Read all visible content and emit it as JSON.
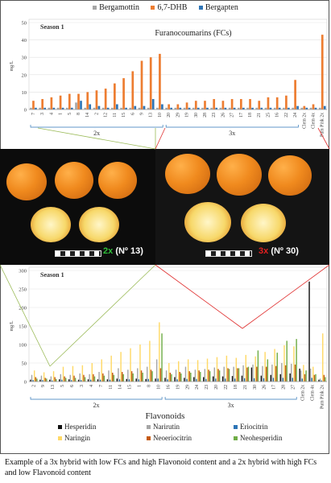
{
  "caption": "Example of a 3x hybrid with low FCs and high Flavonoid content and a 2x hybrid with high FCs and low Flavonoid content",
  "photos": {
    "left_label_prefix": "2x",
    "left_label_suffix": "(Nº 13)",
    "right_label_prefix": "3x",
    "right_label_suffix": "(Nº 30)"
  },
  "chart_data": [
    {
      "type": "bar",
      "title": "Furanocoumarins (FCs)",
      "annotation": "Season 1",
      "ylabel": "mg/L",
      "ylim": [
        0,
        50
      ],
      "yticks": [
        0,
        10,
        20,
        30,
        40,
        50
      ],
      "categories": [
        "7",
        "3",
        "4",
        "1",
        "5",
        "8",
        "14",
        "2",
        "12",
        "11",
        "15",
        "6",
        "9",
        "13",
        "10",
        "20",
        "29",
        "19",
        "30",
        "28",
        "23",
        "26",
        "27",
        "17",
        "18",
        "21",
        "25",
        "16",
        "22",
        "24",
        "Clem 2x",
        "Clem 4x",
        "Pum Pink 2x"
      ],
      "group_labels": [
        "2x",
        "3x"
      ],
      "group_sizes": [
        15,
        15
      ],
      "series": [
        {
          "name": "Bergamottin",
          "color": "#a6a6a6",
          "values": [
            1,
            1,
            1,
            1,
            1,
            4,
            1,
            1,
            1,
            1,
            1,
            1,
            1,
            1,
            1,
            1,
            1,
            1,
            1,
            1,
            1,
            1,
            1,
            1,
            1,
            1,
            1,
            1,
            1,
            1,
            1,
            1,
            1
          ]
        },
        {
          "name": "6,7-DHB",
          "color": "#ed7d31",
          "values": [
            5,
            6,
            7,
            8,
            9,
            9,
            10,
            11,
            12,
            15,
            18,
            22,
            28,
            30,
            32,
            3,
            3,
            4,
            5,
            5,
            6,
            5,
            6,
            6,
            6,
            5,
            7,
            7,
            8,
            17,
            2,
            3,
            43
          ]
        },
        {
          "name": "Bergapten",
          "color": "#2e75b6",
          "values": [
            1,
            1,
            1,
            1,
            1,
            5,
            3,
            2,
            1,
            3,
            1,
            2,
            2,
            6,
            3,
            1,
            1,
            1,
            1,
            1,
            1,
            1,
            1,
            1,
            1,
            1,
            1,
            1,
            1,
            2,
            1,
            1,
            2
          ]
        }
      ]
    },
    {
      "type": "bar",
      "title": "Flavonoids",
      "annotation": "Season 1",
      "ylabel": "mg/L",
      "ylim": [
        0,
        300
      ],
      "yticks": [
        0,
        50,
        100,
        150,
        200,
        250,
        300
      ],
      "categories": [
        "2",
        "9",
        "13",
        "5",
        "6",
        "3",
        "4",
        "7",
        "11",
        "14",
        "15",
        "1",
        "8",
        "10",
        "16",
        "19",
        "29",
        "24",
        "23",
        "20",
        "22",
        "18",
        "21",
        "30",
        "26",
        "17",
        "28",
        "27",
        "Clem 2x",
        "Clem 4x",
        "Pum Pink 2x"
      ],
      "group_labels": [
        "2x",
        "3x"
      ],
      "group_sizes": [
        14,
        14
      ],
      "series": [
        {
          "name": "Hesperidin",
          "color": "#111111",
          "values": [
            5,
            5,
            5,
            6,
            6,
            5,
            6,
            6,
            6,
            8,
            7,
            8,
            7,
            8,
            10,
            12,
            10,
            12,
            12,
            14,
            14,
            15,
            16,
            38,
            16,
            18,
            20,
            22,
            35,
            270,
            5
          ]
        },
        {
          "name": "Narirutin",
          "color": "#a6a6a6",
          "values": [
            18,
            16,
            14,
            20,
            18,
            22,
            20,
            26,
            30,
            36,
            32,
            36,
            40,
            60,
            30,
            32,
            40,
            32,
            34,
            38,
            40,
            40,
            44,
            46,
            42,
            46,
            50,
            48,
            30,
            35,
            8
          ]
        },
        {
          "name": "Eriocitrin",
          "color": "#2e75b6",
          "values": [
            4,
            4,
            3,
            5,
            4,
            4,
            5,
            5,
            5,
            6,
            6,
            6,
            7,
            8,
            6,
            6,
            7,
            7,
            7,
            8,
            8,
            8,
            9,
            9,
            9,
            10,
            10,
            10,
            8,
            10,
            3
          ]
        },
        {
          "name": "Naringin",
          "color": "#ffd966",
          "values": [
            30,
            25,
            28,
            40,
            42,
            44,
            50,
            60,
            70,
            80,
            90,
            100,
            110,
            160,
            50,
            55,
            60,
            58,
            62,
            66,
            70,
            64,
            72,
            68,
            80,
            88,
            98,
            95,
            45,
            40,
            130
          ]
        },
        {
          "name": "Neoeriocitrin",
          "color": "#c55a11",
          "values": [
            12,
            10,
            12,
            14,
            16,
            18,
            20,
            22,
            24,
            26,
            28,
            30,
            32,
            36,
            24,
            26,
            28,
            30,
            32,
            34,
            36,
            36,
            38,
            40,
            40,
            42,
            44,
            46,
            20,
            18,
            18
          ]
        },
        {
          "name": "Neohesperidin",
          "color": "#70ad47",
          "values": [
            8,
            8,
            7,
            10,
            10,
            12,
            14,
            16,
            18,
            20,
            22,
            24,
            28,
            130,
            20,
            22,
            24,
            26,
            28,
            30,
            34,
            36,
            40,
            84,
            60,
            78,
            110,
            115,
            30,
            20,
            12
          ]
        }
      ]
    }
  ]
}
